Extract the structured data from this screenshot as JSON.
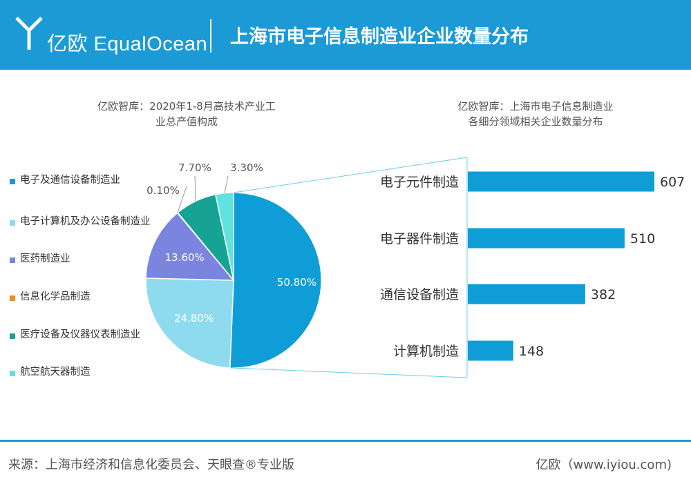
{
  "header": {
    "logo_text": "亿欧 EqualOcean",
    "title": "上海市电子信息制造业企业数量分布"
  },
  "colors": {
    "header_bg": "#1c9ad6",
    "bar": "#0f9dd7"
  },
  "chart_data": [
    {
      "type": "pie",
      "title_lines": [
        "亿欧智库：2020年1-8月高技术产业工",
        "业总产值构成"
      ],
      "slices": [
        {
          "name": "电子及通信设备制造业",
          "value": 50.8,
          "label": "50.80%",
          "color": "#0f9dd7"
        },
        {
          "name": "电子计算机及办公设备制造业",
          "value": 24.8,
          "label": "24.80%",
          "color": "#8edbef"
        },
        {
          "name": "医药制造业",
          "value": 13.6,
          "label": "13.60%",
          "color": "#7b85df"
        },
        {
          "name": "信息化学品制造",
          "value": 0.1,
          "label": "0.10%",
          "color": "#f28c1c"
        },
        {
          "name": "医疗设备及仪器仪表制造业",
          "value": 7.7,
          "label": "7.70%",
          "color": "#17a394"
        },
        {
          "name": "航空航天器制造",
          "value": 3.3,
          "label": "3.30%",
          "color": "#5fe3e0"
        }
      ],
      "legend_placement": "left"
    },
    {
      "type": "bar",
      "orientation": "horizontal",
      "title_lines": [
        "亿欧智库：上海市电子信息制造业",
        "各细分领域相关企业数量分布"
      ],
      "categories": [
        "电子元件制造",
        "电子器件制造",
        "通信设备制造",
        "计算机制造"
      ],
      "values": [
        607,
        510,
        382,
        148
      ],
      "value_labels": [
        "607",
        "510",
        "382",
        "148"
      ],
      "xlim": [
        0,
        607
      ]
    }
  ],
  "footer": {
    "source": "来源：上海市经济和信息化委员会、天眼查®专业版",
    "brand": "亿欧（www.iyiou.com)"
  }
}
